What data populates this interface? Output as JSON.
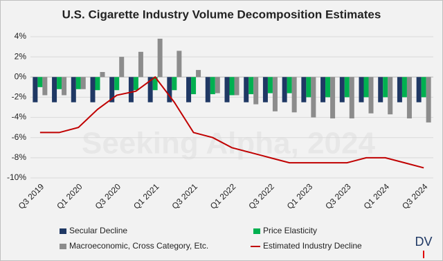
{
  "chart_data": {
    "type": "bar-line",
    "title": "U.S. Cigarette Industry Volume Decomposition Estimates",
    "watermark": "Seeking Alpha, 2024",
    "logo": "DV",
    "categories": [
      "Q3 2019",
      null,
      "Q1 2020",
      null,
      "Q3 2020",
      null,
      "Q1 2021",
      null,
      "Q3 2021",
      null,
      "Q1 2022",
      null,
      "Q3 2022",
      null,
      "Q1 2023",
      null,
      "Q3 2023",
      null,
      "Q1 2024",
      null,
      "Q3 2024"
    ],
    "series": [
      {
        "name": "Secular Decline",
        "type": "bar",
        "color": "#1f3864",
        "values": [
          -2.5,
          -2.5,
          -2.5,
          -2.5,
          -2.5,
          -2.5,
          -2.5,
          -2.5,
          -2.5,
          -2.5,
          -2.5,
          -2.5,
          -2.5,
          -2.5,
          -2.5,
          -2.5,
          -2.5,
          -2.5,
          -2.5,
          -2.5,
          -2.5
        ]
      },
      {
        "name": "Price Elasticity",
        "type": "bar",
        "color": "#00b050",
        "values": [
          -1,
          -1.2,
          -1.2,
          -1.3,
          -1.3,
          -1.3,
          -1.3,
          -1.3,
          -1.7,
          -1.7,
          -1.8,
          -1.7,
          -1.6,
          -1.6,
          -2,
          -2,
          -2,
          -2,
          -2,
          -2,
          -2
        ]
      },
      {
        "name": "Macroeconomic, Cross Category, Etc.",
        "type": "bar",
        "color": "#8c8c8c",
        "values": [
          -1.8,
          -1.8,
          -1.2,
          0.5,
          2,
          2.5,
          3.8,
          2.6,
          0.7,
          -1.6,
          -1.8,
          -2.7,
          -3.4,
          -3.5,
          -4,
          -4.1,
          -4.1,
          -3.6,
          -3.7,
          -4.1,
          -4.5
        ]
      },
      {
        "name": "Estimated Industry Decline",
        "type": "line",
        "color": "#c00000",
        "values": [
          -5.5,
          -5.5,
          -5,
          -3.2,
          -1.8,
          -1.4,
          0,
          -2.5,
          -5.5,
          -6,
          -7,
          -7.5,
          -8,
          -8.5,
          -8.5,
          -8.5,
          -8.5,
          -8,
          -8,
          -8.5,
          -9
        ]
      }
    ],
    "ylim": [
      -10,
      4
    ],
    "yticks": [
      {
        "value": -10,
        "label": "-10%"
      },
      {
        "value": -8,
        "label": "-8%"
      },
      {
        "value": -6,
        "label": "-6%"
      },
      {
        "value": -4,
        "label": "-4%"
      },
      {
        "value": -2,
        "label": "-2%"
      },
      {
        "value": 0,
        "label": "0%"
      },
      {
        "value": 2,
        "label": "2%"
      },
      {
        "value": 4,
        "label": "4%"
      }
    ],
    "grid": true,
    "legend": "bottom"
  }
}
